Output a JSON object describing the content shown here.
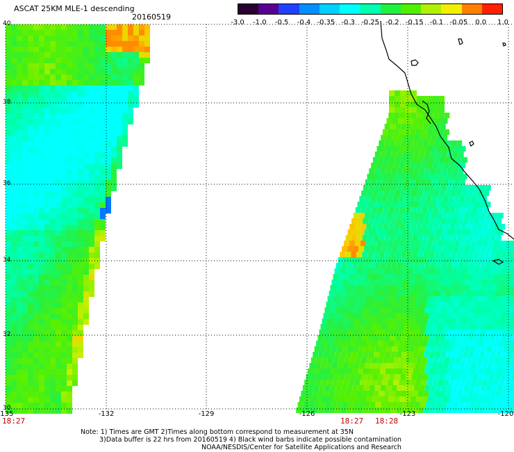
{
  "header": {
    "title": "ASCAT 25KM MLE-1 descending",
    "date": "20160519"
  },
  "colorbar": {
    "ticks": [
      "-3.0",
      "-1.0",
      "-0.5",
      "-0.4",
      "-0.35",
      "-0.3",
      "-0.25",
      "-0.2",
      "-0.15",
      "-0.1",
      "-0.05",
      "0.0",
      "1.0"
    ],
    "colors": [
      "#2a0030",
      "#5a0090",
      "#2040ff",
      "#0090ff",
      "#00d0ff",
      "#00ffff",
      "#00ffb0",
      "#20f040",
      "#50f000",
      "#b0f000",
      "#f0f000",
      "#ff8000",
      "#ff2000"
    ]
  },
  "map": {
    "lon_labels": [
      "-135",
      "-132",
      "-129",
      "-126",
      "-123",
      "-120"
    ],
    "lat_labels": [
      "40",
      "38",
      "36",
      "34",
      "32",
      "30"
    ],
    "time_labels": [
      "18:27",
      "18:27",
      "18:28"
    ]
  },
  "footer": {
    "note_line1": "Note: 1) Times are GMT 2)Times along bottom correspond to measurement at 35N",
    "note_line2": "3)Data buffer is 22 hrs from 20160519 4) Black wind barbs indicate possible contamination",
    "note_line3": "NOAA/NESDIS/Center for Satellite Applications and Research"
  }
}
